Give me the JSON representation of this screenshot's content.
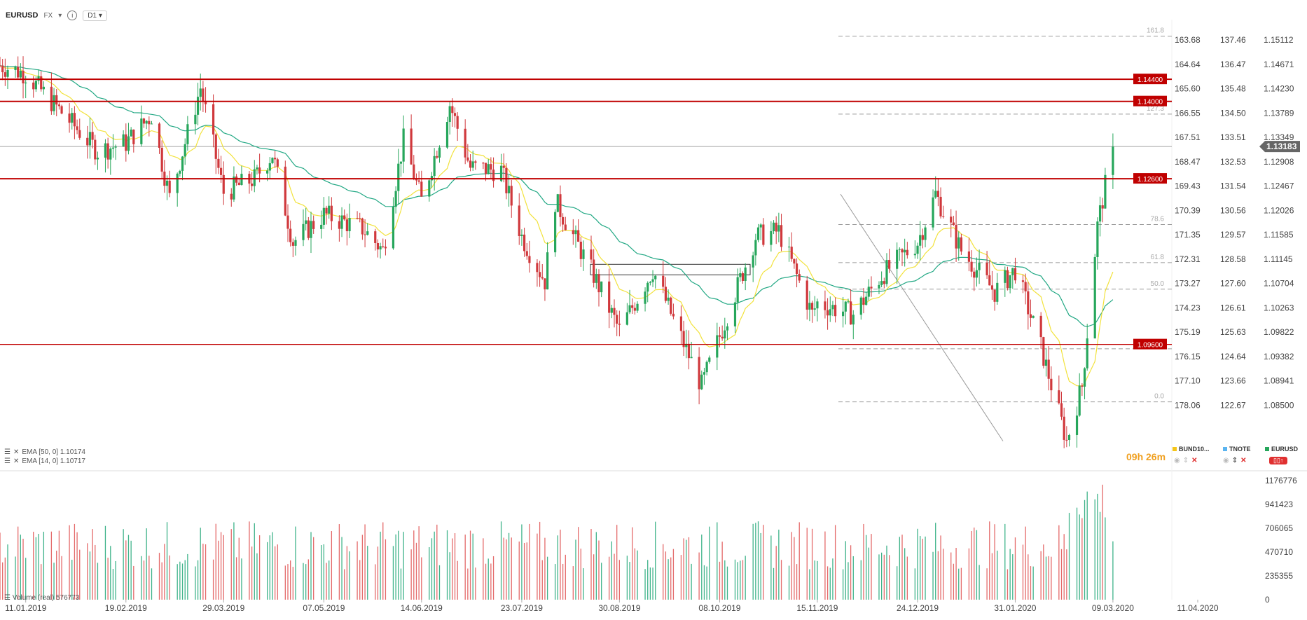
{
  "header": {
    "symbol": "EURUSD",
    "type": "FX",
    "timeframe": "D1"
  },
  "indicators": [
    {
      "label": "EMA [50, 0] 1.10174",
      "color": "#22a884"
    },
    {
      "label": "EMA [14, 0] 1.10717",
      "color": "#f1e05a"
    }
  ],
  "volume_label": "Volume (real) 576773",
  "countdown": "09h 26m",
  "instruments": [
    {
      "name": "BUND10...",
      "color": "#f5c518"
    },
    {
      "name": "TNOTE",
      "color": "#5ab4f0"
    },
    {
      "name": "EURUSD",
      "color": "#26a65b"
    }
  ],
  "colors": {
    "up": "#26a65b",
    "down": "#d0383c",
    "resistance": "#c00000",
    "ema50": "#22a884",
    "ema14": "#f2e23c",
    "vol_up": "#3fb38a",
    "vol_down": "#e46a6a"
  },
  "chart_data": {
    "type": "candlestick",
    "symbol": "EURUSD",
    "timeframe": "D1",
    "x_labels": [
      "11.01.2019",
      "19.02.2019",
      "29.03.2019",
      "07.05.2019",
      "14.06.2019",
      "23.07.2019",
      "30.08.2019",
      "08.10.2019",
      "15.11.2019",
      "24.12.2019",
      "31.01.2020",
      "09.03.2020",
      "11.04.2020"
    ],
    "price_axis": {
      "ylim": [
        1.0749,
        1.1548
      ],
      "ticks": [
        1.15112,
        1.14671,
        1.1423,
        1.13789,
        1.13349,
        1.12908,
        1.12467,
        1.12026,
        1.11585,
        1.11145,
        1.10704,
        1.10263,
        1.09822,
        1.09382,
        1.08941,
        1.085
      ],
      "current_price": "1.13183"
    },
    "secondary_axes": {
      "bund": [
        "163.68",
        "164.64",
        "165.60",
        "166.55",
        "167.51",
        "168.47",
        "169.43",
        "170.39",
        "171.35",
        "172.31",
        "173.27",
        "174.23",
        "175.19",
        "176.15",
        "177.10",
        "178.06"
      ],
      "tnote": [
        "137.46",
        "136.47",
        "135.48",
        "134.50",
        "133.51",
        "132.53",
        "131.54",
        "130.56",
        "129.57",
        "128.58",
        "127.60",
        "126.61",
        "125.63",
        "124.64",
        "123.66",
        "122.67"
      ]
    },
    "horizontal_levels": [
      {
        "price": 1.144,
        "label": "1.14400"
      },
      {
        "price": 1.14,
        "label": "1.14000"
      },
      {
        "price": 1.126,
        "label": "1.12600"
      },
      {
        "price": 1.096,
        "label": "1.09600"
      }
    ],
    "fibonacci": {
      "levels": [
        {
          "ratio": "161.8",
          "price": 1.1518
        },
        {
          "ratio": "127.3",
          "price": 1.1377
        },
        {
          "ratio": "78.6",
          "price": 1.1177
        },
        {
          "ratio": "61.8",
          "price": 1.1108
        },
        {
          "ratio": "50.0",
          "price": 1.106
        },
        {
          "ratio": "23.6",
          "price": 1.0952
        },
        {
          "ratio": "0.0",
          "price": 1.0856
        }
      ]
    },
    "close_path": [
      {
        "date": "2019-01-01",
        "close": 1.1465
      },
      {
        "date": "2019-01-11",
        "close": 1.145
      },
      {
        "date": "2019-01-25",
        "close": 1.138
      },
      {
        "date": "2019-02-08",
        "close": 1.131
      },
      {
        "date": "2019-02-19",
        "close": 1.1325
      },
      {
        "date": "2019-03-01",
        "close": 1.1375
      },
      {
        "date": "2019-03-08",
        "close": 1.1225
      },
      {
        "date": "2019-03-20",
        "close": 1.1425
      },
      {
        "date": "2019-03-29",
        "close": 1.1235
      },
      {
        "date": "2019-04-10",
        "close": 1.126
      },
      {
        "date": "2019-04-17",
        "close": 1.1305
      },
      {
        "date": "2019-04-25",
        "close": 1.1145
      },
      {
        "date": "2019-05-07",
        "close": 1.1195
      },
      {
        "date": "2019-05-22",
        "close": 1.117
      },
      {
        "date": "2019-05-30",
        "close": 1.113
      },
      {
        "date": "2019-06-07",
        "close": 1.133
      },
      {
        "date": "2019-06-14",
        "close": 1.122
      },
      {
        "date": "2019-06-25",
        "close": 1.1395
      },
      {
        "date": "2019-07-03",
        "close": 1.128
      },
      {
        "date": "2019-07-15",
        "close": 1.1275
      },
      {
        "date": "2019-07-23",
        "close": 1.1155
      },
      {
        "date": "2019-08-01",
        "close": 1.1075
      },
      {
        "date": "2019-08-05",
        "close": 1.122
      },
      {
        "date": "2019-08-20",
        "close": 1.1085
      },
      {
        "date": "2019-08-30",
        "close": 1.0985
      },
      {
        "date": "2019-09-12",
        "close": 1.1095
      },
      {
        "date": "2019-09-20",
        "close": 1.1005
      },
      {
        "date": "2019-10-01",
        "close": 1.0885
      },
      {
        "date": "2019-10-08",
        "close": 1.0975
      },
      {
        "date": "2019-10-22",
        "close": 1.1155
      },
      {
        "date": "2019-10-31",
        "close": 1.1165
      },
      {
        "date": "2019-11-13",
        "close": 1.1015
      },
      {
        "date": "2019-11-15",
        "close": 1.1035
      },
      {
        "date": "2019-11-29",
        "close": 1.1015
      },
      {
        "date": "2019-12-10",
        "close": 1.1085
      },
      {
        "date": "2019-12-24",
        "close": 1.1145
      },
      {
        "date": "2019-12-31",
        "close": 1.1232
      },
      {
        "date": "2020-01-10",
        "close": 1.113
      },
      {
        "date": "2020-01-23",
        "close": 1.1055
      },
      {
        "date": "2020-01-31",
        "close": 1.1095
      },
      {
        "date": "2020-02-10",
        "close": 1.0955
      },
      {
        "date": "2020-02-20",
        "close": 1.0785
      },
      {
        "date": "2020-02-26",
        "close": 1.0885
      },
      {
        "date": "2020-03-03",
        "close": 1.1175
      },
      {
        "date": "2020-03-09",
        "close": 1.1318
      }
    ],
    "ema": [
      {
        "name": "EMA [50, 0]",
        "last": 1.10174
      },
      {
        "name": "EMA [14, 0]",
        "last": 1.10717
      }
    ],
    "volume_axis": {
      "ticks": [
        "1176776",
        "941423",
        "706065",
        "470710",
        "235355",
        "0"
      ],
      "last": 576773
    },
    "legend": "bottom-right"
  }
}
